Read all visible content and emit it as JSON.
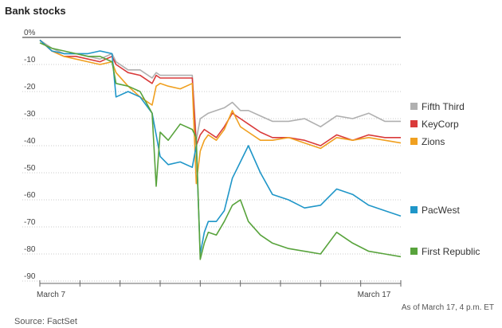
{
  "title": "Bank stocks",
  "note": "As of March 17, 4 p.m. ET",
  "source": "Source: FactSet",
  "chart_data": {
    "type": "line",
    "ylim": [
      -90,
      0
    ],
    "yticks": [
      0,
      -10,
      -20,
      -30,
      -40,
      -50,
      -60,
      -70,
      -80,
      -90
    ],
    "ytick_labels": [
      "0%",
      "-10",
      "-20",
      "-30",
      "-40",
      "-50",
      "-60",
      "-70",
      "-80",
      "-90"
    ],
    "x_tick_labels": [
      {
        "label": "March 7",
        "x": 0
      },
      {
        "label": "March 17",
        "x": 8
      }
    ],
    "xlim": [
      0,
      9
    ],
    "grid": true,
    "legend": "right",
    "series": [
      {
        "name": "Fifth Third",
        "color": "#b0b0b0",
        "x": [
          0,
          0.3,
          0.6,
          0.9,
          1.2,
          1.5,
          1.8,
          1.9,
          2.2,
          2.5,
          2.8,
          2.9,
          3.0,
          3.2,
          3.5,
          3.8,
          3.9,
          4.0,
          4.1,
          4.2,
          4.4,
          4.6,
          4.8,
          5.0,
          5.2,
          5.5,
          5.8,
          6.2,
          6.6,
          7.0,
          7.4,
          7.8,
          8.2,
          8.6,
          9.0
        ],
        "y": [
          -1,
          -4,
          -6,
          -6,
          -7,
          -8,
          -6,
          -9,
          -12,
          -12,
          -15,
          -13,
          -14,
          -14,
          -14,
          -14,
          -38,
          -30,
          -29,
          -28,
          -27,
          -26,
          -24,
          -27,
          -27,
          -29,
          -31,
          -31,
          -30,
          -33,
          -29,
          -30,
          -28,
          -31,
          -31
        ]
      },
      {
        "name": "KeyCorp",
        "color": "#d93a3a",
        "x": [
          0,
          0.3,
          0.6,
          0.9,
          1.2,
          1.5,
          1.8,
          1.9,
          2.2,
          2.5,
          2.8,
          2.9,
          3.0,
          3.2,
          3.5,
          3.8,
          3.9,
          4.0,
          4.1,
          4.2,
          4.4,
          4.6,
          4.8,
          5.0,
          5.2,
          5.5,
          5.8,
          6.2,
          6.6,
          7.0,
          7.4,
          7.8,
          8.2,
          8.6,
          9.0
        ],
        "y": [
          -1,
          -5,
          -7,
          -7,
          -8,
          -9,
          -7,
          -10,
          -13,
          -14,
          -17,
          -14,
          -15,
          -15,
          -15,
          -15,
          -40,
          -36,
          -34,
          -35,
          -37,
          -33,
          -28,
          -30,
          -32,
          -35,
          -37,
          -37,
          -38,
          -40,
          -36,
          -38,
          -36,
          -37,
          -37
        ]
      },
      {
        "name": "Zions",
        "color": "#f0a020",
        "x": [
          0,
          0.3,
          0.6,
          0.9,
          1.2,
          1.5,
          1.8,
          1.9,
          2.2,
          2.5,
          2.8,
          2.9,
          3.0,
          3.2,
          3.5,
          3.8,
          3.9,
          4.0,
          4.1,
          4.2,
          4.4,
          4.6,
          4.8,
          5.0,
          5.2,
          5.5,
          5.8,
          6.2,
          6.6,
          7.0,
          7.4,
          7.8,
          8.2,
          8.6,
          9.0
        ],
        "y": [
          -1,
          -5,
          -7,
          -8,
          -9,
          -10,
          -9,
          -13,
          -18,
          -22,
          -25,
          -18,
          -17,
          -18,
          -19,
          -17,
          -54,
          -42,
          -38,
          -36,
          -38,
          -34,
          -27,
          -33,
          -35,
          -38,
          -38,
          -37,
          -39,
          -41,
          -37,
          -38,
          -37,
          -38,
          -39
        ]
      },
      {
        "name": "PacWest",
        "color": "#1f96c8",
        "x": [
          0,
          0.3,
          0.6,
          0.9,
          1.2,
          1.5,
          1.8,
          1.9,
          2.2,
          2.5,
          2.8,
          2.9,
          3.0,
          3.2,
          3.5,
          3.8,
          3.9,
          4.0,
          4.1,
          4.2,
          4.4,
          4.6,
          4.8,
          5.0,
          5.2,
          5.5,
          5.8,
          6.2,
          6.6,
          7.0,
          7.4,
          7.8,
          8.2,
          8.6,
          9.0
        ],
        "y": [
          -1,
          -5,
          -6,
          -6,
          -6,
          -5,
          -6,
          -22,
          -20,
          -22,
          -28,
          -36,
          -44,
          -47,
          -46,
          -48,
          -40,
          -80,
          -72,
          -68,
          -68,
          -64,
          -52,
          -46,
          -40,
          -50,
          -58,
          -60,
          -63,
          -62,
          -56,
          -58,
          -62,
          -64,
          -66
        ]
      },
      {
        "name": "First Republic",
        "color": "#58a33c",
        "x": [
          0,
          0.3,
          0.6,
          0.9,
          1.2,
          1.5,
          1.8,
          1.9,
          2.2,
          2.5,
          2.8,
          2.9,
          3.0,
          3.2,
          3.5,
          3.8,
          3.9,
          4.0,
          4.1,
          4.2,
          4.4,
          4.6,
          4.8,
          5.0,
          5.2,
          5.5,
          5.8,
          6.2,
          6.6,
          7.0,
          7.4,
          7.8,
          8.2,
          8.6,
          9.0
        ],
        "y": [
          -2,
          -4,
          -5,
          -6,
          -7,
          -7,
          -9,
          -17,
          -18,
          -20,
          -28,
          -55,
          -35,
          -38,
          -32,
          -34,
          -37,
          -82,
          -76,
          -72,
          -73,
          -68,
          -62,
          -60,
          -68,
          -73,
          -76,
          -78,
          -79,
          -80,
          -72,
          -76,
          -79,
          -80,
          -81
        ]
      }
    ]
  }
}
